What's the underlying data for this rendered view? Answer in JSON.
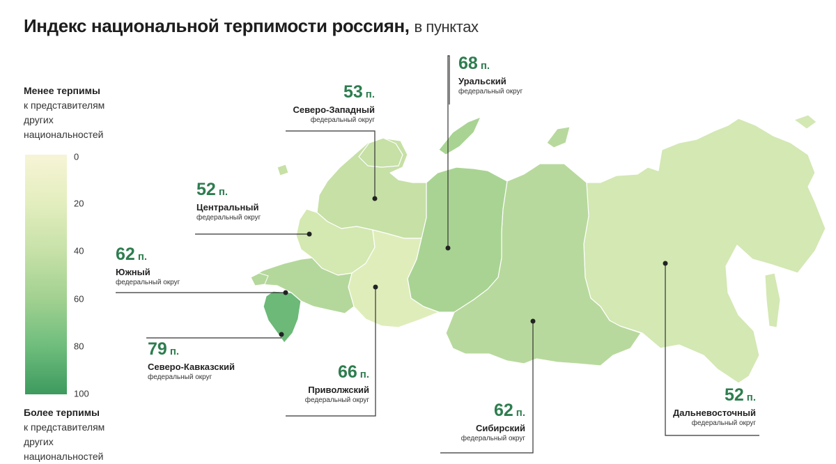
{
  "title": {
    "main": "Индекс национальной терпимости россиян,",
    "sub": "в пунктах"
  },
  "legend": {
    "top": {
      "heading": "Менее терпимы",
      "lines": [
        "к представителям",
        "других",
        "национальностей"
      ]
    },
    "bottom": {
      "heading": "Более терпимы",
      "lines": [
        "к представителям",
        "других",
        "национальностей"
      ]
    },
    "ticks": [
      "0",
      "20",
      "40",
      "60",
      "80",
      "100"
    ],
    "colors": [
      "#f7f4d6",
      "#e3eebe",
      "#c7e1a9",
      "#a2d191",
      "#6ebd7c",
      "#3d9a5e"
    ]
  },
  "unit": "п.",
  "districts": [
    {
      "id": "nw",
      "value": "53",
      "name": "Северо-Западный",
      "sub": "федеральный округ",
      "color": "#c6e0a6"
    },
    {
      "id": "ural",
      "value": "68",
      "name": "Уральский",
      "sub": "федеральный округ",
      "color": "#a9d393"
    },
    {
      "id": "central",
      "value": "52",
      "name": "Центральный",
      "sub": "федеральный округ",
      "color": "#d4e8b1"
    },
    {
      "id": "south",
      "value": "62",
      "name": "Южный",
      "sub": "федеральный округ",
      "color": "#b4d89b"
    },
    {
      "id": "ncfd",
      "value": "79",
      "name": "Северо-Кавказский",
      "sub": "федеральный округ",
      "color": "#6cb978"
    },
    {
      "id": "volga",
      "value": "66",
      "name": "Приволжский",
      "sub": "федеральный округ",
      "color": "#dfedbb"
    },
    {
      "id": "sib",
      "value": "62",
      "name": "Сибирский",
      "sub": "федеральный округ",
      "color": "#b8d99d"
    },
    {
      "id": "fe",
      "value": "52",
      "name": "Дальневосточный",
      "sub": "федеральный округ",
      "color": "#d3e8b3"
    }
  ]
}
